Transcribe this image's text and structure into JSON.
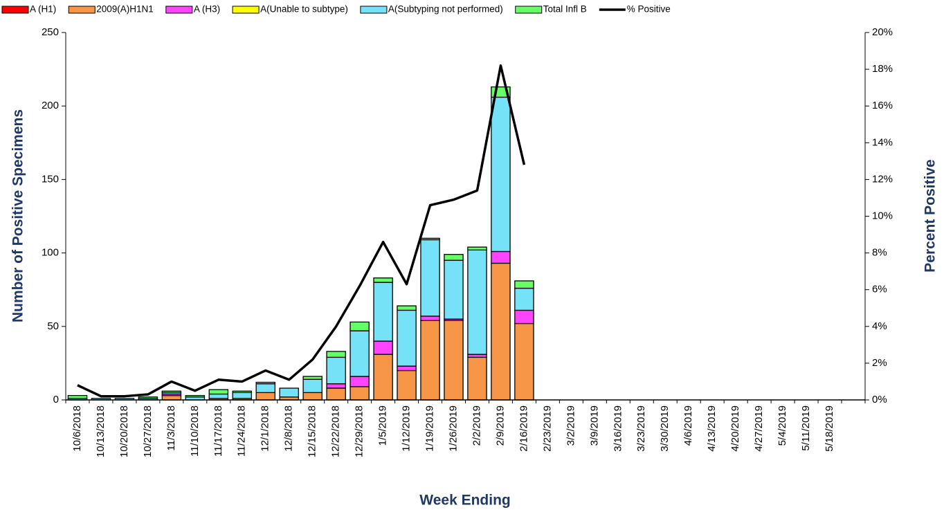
{
  "chart_data": {
    "type": "bar",
    "y_axis_title": "Number of  Positive Specimens",
    "y2_axis_title": "Percent Positive",
    "x_axis_title": "Week Ending",
    "categories": [
      "10/6/2018",
      "10/13/2018",
      "10/20/2018",
      "10/27/2018",
      "11/3/2018",
      "11/10/2018",
      "11/17/2018",
      "11/24/2018",
      "12/1/2018",
      "12/8/2018",
      "12/15/2018",
      "12/22/2018",
      "12/29/2018",
      "1/5/2019",
      "1/12/2019",
      "1/19/2019",
      "1/26/2019",
      "2/2/2019",
      "2/9/2019",
      "2/16/2019",
      "2/23/2019",
      "3/2/2019",
      "3/9/2019",
      "3/16/2019",
      "3/23/2019",
      "3/30/2019",
      "4/6/2019",
      "4/13/2019",
      "4/20/2019",
      "4/27/2019",
      "5/4/2019",
      "5/11/2019",
      "5/18/2019",
      null
    ],
    "series": [
      {
        "name": "A (H1)",
        "color": "#ff0000",
        "values": [
          0,
          0,
          0,
          0,
          0,
          0,
          0,
          0,
          0,
          0,
          0,
          0,
          0,
          0,
          0,
          0,
          0,
          0,
          0,
          0,
          null,
          null,
          null,
          null,
          null,
          null,
          null,
          null,
          null,
          null,
          null,
          null,
          null,
          null
        ]
      },
      {
        "name": "2009(A)H1N1",
        "color": "#f79646",
        "values": [
          0,
          0,
          0,
          0,
          3,
          0,
          1,
          1,
          5,
          2,
          5,
          8,
          9,
          31,
          20,
          54,
          54,
          29,
          93,
          52,
          null,
          null,
          null,
          null,
          null,
          null,
          null,
          null,
          null,
          null,
          null,
          null,
          null,
          null
        ]
      },
      {
        "name": "A (H3)",
        "color": "#ff44ff",
        "values": [
          0,
          0,
          0,
          0,
          1,
          0,
          0,
          0,
          0,
          0,
          0,
          3,
          7,
          9,
          3,
          3,
          1,
          2,
          8,
          9,
          null,
          null,
          null,
          null,
          null,
          null,
          null,
          null,
          null,
          null,
          null,
          null,
          null,
          null
        ]
      },
      {
        "name": "A(Unable to subtype)",
        "color": "#ffff00",
        "values": [
          0,
          0,
          0,
          0,
          0,
          0,
          0,
          0,
          0,
          0,
          0,
          0,
          0,
          0,
          0,
          0,
          0,
          0,
          0,
          0,
          null,
          null,
          null,
          null,
          null,
          null,
          null,
          null,
          null,
          null,
          null,
          null,
          null,
          null
        ]
      },
      {
        "name": "A(Subtyping not performed)",
        "color": "#75e2f8",
        "values": [
          1,
          1,
          1,
          1,
          1,
          2,
          3,
          4,
          6,
          6,
          9,
          18,
          31,
          40,
          38,
          52,
          40,
          71,
          105,
          15,
          null,
          null,
          null,
          null,
          null,
          null,
          null,
          null,
          null,
          null,
          null,
          null,
          null,
          null
        ]
      },
      {
        "name": "Total Infl B",
        "color": "#66ff66",
        "values": [
          2,
          0,
          0,
          1,
          1,
          1,
          3,
          1,
          1,
          0,
          2,
          4,
          6,
          3,
          3,
          1,
          4,
          2,
          7,
          5,
          null,
          null,
          null,
          null,
          null,
          null,
          null,
          null,
          null,
          null,
          null,
          null,
          null,
          null
        ]
      },
      {
        "name": "% Positive",
        "color": "#000000",
        "axis": "y2",
        "values": [
          0.8,
          0.2,
          0.2,
          0.3,
          1.0,
          0.5,
          1.1,
          1.0,
          1.6,
          1.1,
          2.2,
          4.0,
          6.2,
          8.6,
          6.3,
          10.6,
          10.9,
          11.4,
          18.2,
          12.8,
          null,
          null,
          null,
          null,
          null,
          null,
          null,
          null,
          null,
          null,
          null,
          null,
          null,
          null
        ]
      }
    ],
    "ylim": [
      0,
      250
    ],
    "yticks": [
      0,
      50,
      100,
      150,
      200,
      250
    ],
    "y2lim": [
      0,
      20
    ],
    "y2ticks": [
      {
        "value": 0,
        "label": "0%"
      },
      {
        "value": 2,
        "label": "2%"
      },
      {
        "value": 4,
        "label": "4%"
      },
      {
        "value": 6,
        "label": "6%"
      },
      {
        "value": 8,
        "label": "8%"
      },
      {
        "value": 10,
        "label": "10%"
      },
      {
        "value": 12,
        "label": "12%"
      },
      {
        "value": 14,
        "label": "14%"
      },
      {
        "value": 16,
        "label": "16%"
      },
      {
        "value": 18,
        "label": "18%"
      },
      {
        "value": 20,
        "label": "20%"
      }
    ],
    "legend": "top"
  }
}
